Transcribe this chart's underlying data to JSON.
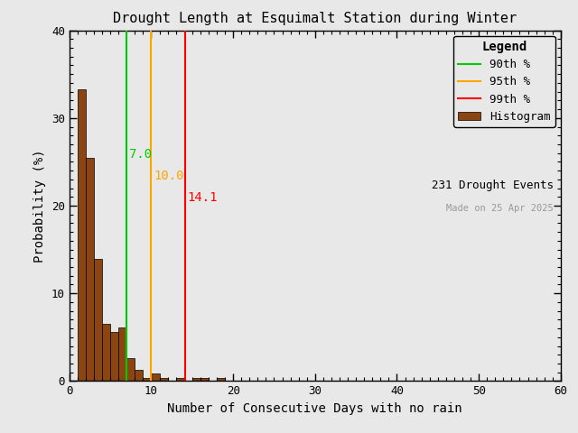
{
  "title": "Drought Length at Esquimalt Station during Winter",
  "xlabel": "Number of Consecutive Days with no rain",
  "ylabel": "Probability (%)",
  "xlim": [
    0,
    60
  ],
  "ylim": [
    0,
    40
  ],
  "xticks": [
    0,
    10,
    20,
    30,
    40,
    50,
    60
  ],
  "yticks": [
    0,
    10,
    20,
    30,
    40
  ],
  "bar_values": [
    33.3,
    25.5,
    13.9,
    6.5,
    5.6,
    6.1,
    2.6,
    1.3,
    0.4,
    0.9,
    0.4,
    0.0,
    0.4,
    0.0,
    0.4,
    0.4,
    0.0,
    0.4
  ],
  "bar_color": "#8B4513",
  "bar_edgecolor": "#000000",
  "line_90": 7.0,
  "line_95": 10.0,
  "line_99": 14.1,
  "line_90_color": "#00cc00",
  "line_95_color": "#FFA500",
  "line_99_color": "#FF0000",
  "label_90": "7.0",
  "label_95": "10.0",
  "label_99": "14.1",
  "legend_title": "Legend",
  "legend_90": "90th %",
  "legend_95": "95th %",
  "legend_99": "99th %",
  "legend_hist": "Histogram",
  "drought_events": "231 Drought Events",
  "made_on": "Made on 25 Apr 2025",
  "bg_color": "#e8e8e8",
  "title_fontsize": 11,
  "axis_fontsize": 10,
  "tick_fontsize": 9,
  "legend_fontsize": 9
}
